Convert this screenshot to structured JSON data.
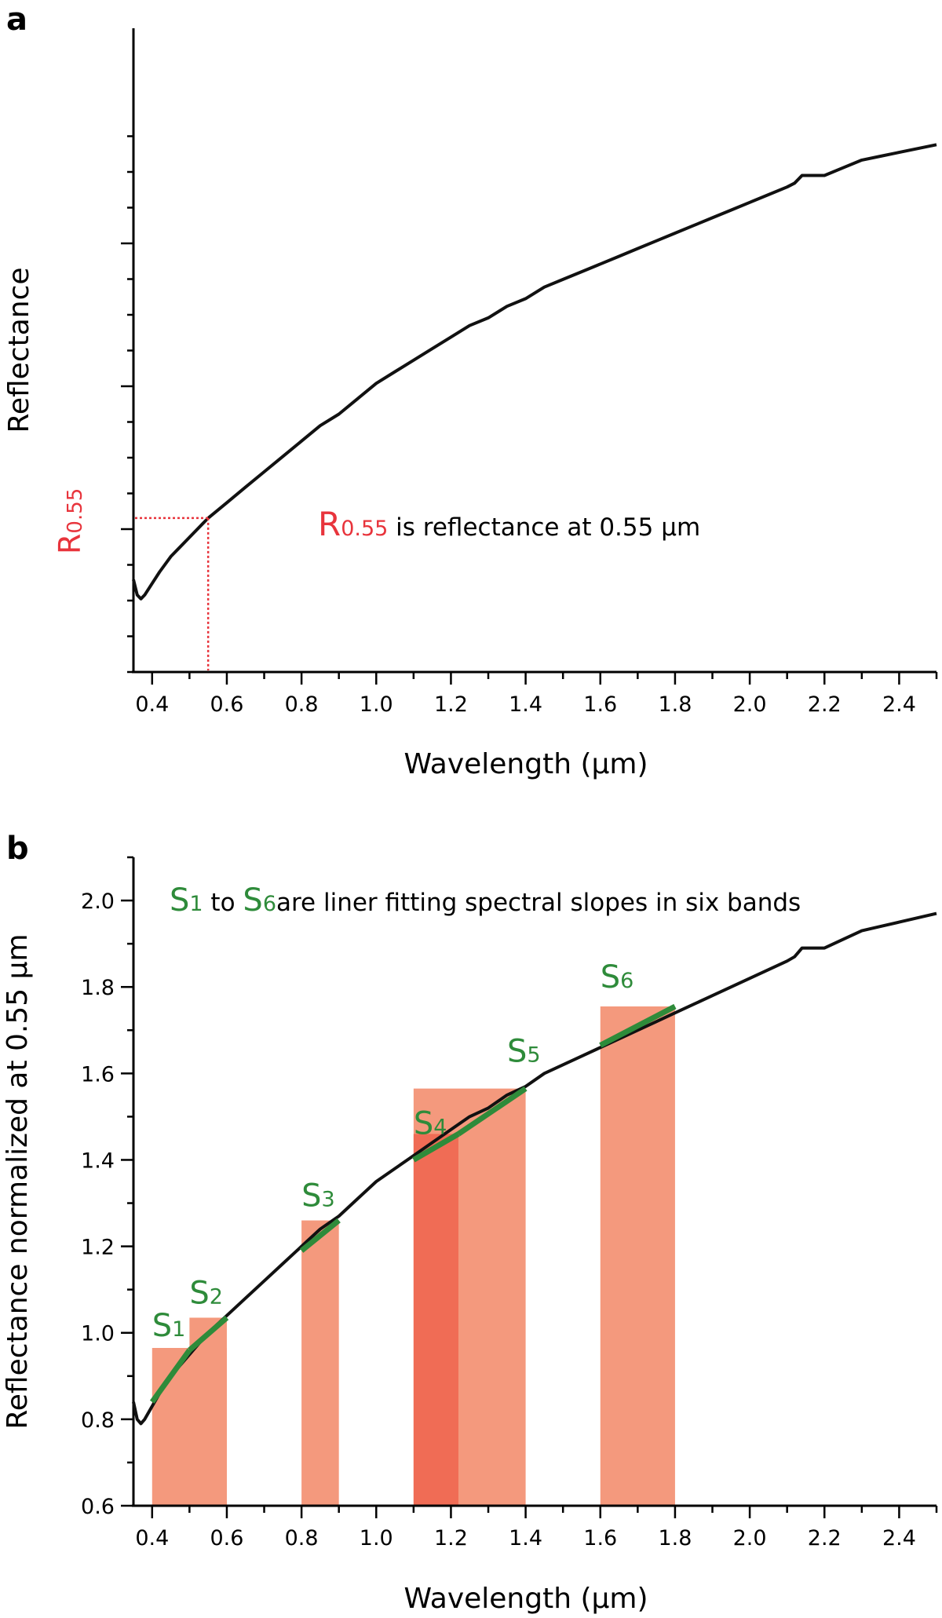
{
  "chart_data": [
    {
      "panel": "a",
      "type": "line",
      "xlabel": "Wavelength (μm)",
      "ylabel": "Reflectance",
      "xlim": [
        0.35,
        2.5
      ],
      "xticks": [
        "0.4",
        "0.6",
        "0.8",
        "1.0",
        "1.2",
        "1.4",
        "1.6",
        "1.8",
        "2.0",
        "2.2",
        "2.4"
      ],
      "marker": {
        "label_main": "R",
        "label_sub": "0.55",
        "x": 0.55
      },
      "annotation": {
        "main": "R",
        "sub": "0.55",
        "rest": " is reflectance at 0.55 μm"
      },
      "colors": {
        "curve": "#111111",
        "marker": "#e8343c"
      }
    },
    {
      "panel": "b",
      "type": "line",
      "xlabel": "Wavelength (μm)",
      "ylabel": "Reflectance normalized at 0.55 μm",
      "xlim": [
        0.35,
        2.5
      ],
      "ylim": [
        0.6,
        2.1
      ],
      "xticks": [
        "0.4",
        "0.6",
        "0.8",
        "1.0",
        "1.2",
        "1.4",
        "1.6",
        "1.8",
        "2.0",
        "2.2",
        "2.4"
      ],
      "yticks": [
        "0.6",
        "0.8",
        "1.0",
        "1.2",
        "1.4",
        "1.6",
        "1.8",
        "2.0"
      ],
      "x": [
        0.35,
        0.36,
        0.37,
        0.38,
        0.4,
        0.42,
        0.45,
        0.48,
        0.5,
        0.55,
        0.6,
        0.65,
        0.7,
        0.75,
        0.8,
        0.85,
        0.9,
        0.95,
        1.0,
        1.05,
        1.1,
        1.15,
        1.2,
        1.25,
        1.3,
        1.35,
        1.4,
        1.45,
        1.5,
        1.55,
        1.6,
        1.65,
        1.7,
        1.75,
        1.8,
        1.85,
        1.9,
        1.95,
        2.0,
        2.05,
        2.1,
        2.12,
        2.14,
        2.16,
        2.2,
        2.25,
        2.3,
        2.35,
        2.4,
        2.45,
        2.5
      ],
      "y": [
        0.84,
        0.8,
        0.79,
        0.8,
        0.83,
        0.86,
        0.9,
        0.93,
        0.95,
        1.0,
        1.04,
        1.08,
        1.12,
        1.16,
        1.2,
        1.24,
        1.27,
        1.31,
        1.35,
        1.38,
        1.41,
        1.44,
        1.47,
        1.5,
        1.52,
        1.55,
        1.57,
        1.6,
        1.62,
        1.64,
        1.66,
        1.68,
        1.7,
        1.72,
        1.74,
        1.76,
        1.78,
        1.8,
        1.82,
        1.84,
        1.86,
        1.87,
        1.89,
        1.89,
        1.89,
        1.91,
        1.93,
        1.94,
        1.95,
        1.96,
        1.97
      ],
      "bands": [
        {
          "x0": 0.4,
          "x1": 0.6,
          "top": 0.965
        },
        {
          "x0": 0.5,
          "x1": 0.6,
          "top": 1.035
        },
        {
          "x0": 0.8,
          "x1": 0.9,
          "top": 1.26
        },
        {
          "x0": 1.1,
          "x1": 1.4,
          "top": 1.565
        },
        {
          "x0": 1.1,
          "x1": 1.22,
          "top": 1.46
        },
        {
          "x0": 1.6,
          "x1": 1.8,
          "top": 1.755
        }
      ],
      "slopes": [
        {
          "main": "S",
          "sub": "1",
          "x0": 0.4,
          "y0": 0.84,
          "x1": 0.5,
          "y1": 0.96
        },
        {
          "main": "S",
          "sub": "2",
          "x0": 0.5,
          "y0": 0.96,
          "x1": 0.6,
          "y1": 1.035
        },
        {
          "main": "S",
          "sub": "3",
          "x0": 0.8,
          "y0": 1.19,
          "x1": 0.9,
          "y1": 1.26
        },
        {
          "main": "S",
          "sub": "4",
          "x0": 1.1,
          "y0": 1.4,
          "x1": 1.22,
          "y1": 1.46
        },
        {
          "main": "S",
          "sub": "5",
          "x0": 1.22,
          "y0": 1.46,
          "x1": 1.4,
          "y1": 1.565
        },
        {
          "main": "S",
          "sub": "6",
          "x0": 1.6,
          "y0": 1.665,
          "x1": 1.8,
          "y1": 1.755
        }
      ],
      "annotation": {
        "s_start": "1",
        "connector": " to ",
        "s_end": "6",
        "rest": "are liner fitting spectral slopes in six bands"
      },
      "colors": {
        "curve": "#111111",
        "slope": "#2e8b3a",
        "band": "#f4997d",
        "band_dark": "#f06c55"
      }
    }
  ]
}
